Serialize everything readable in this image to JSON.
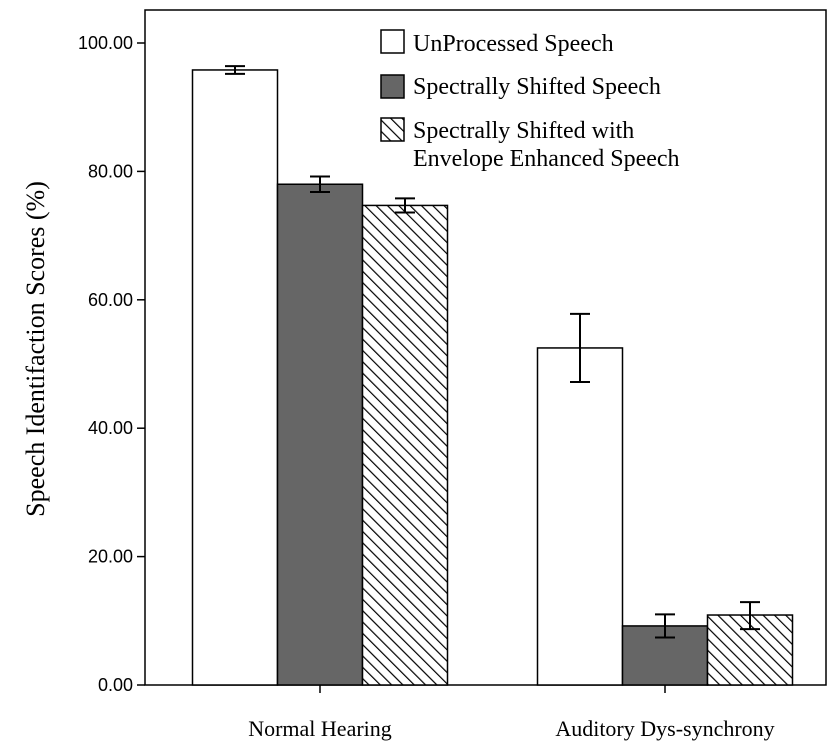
{
  "chart_data": {
    "type": "bar",
    "title": "",
    "xlabel": "",
    "ylabel": "Speech Identifaction Scores (%)",
    "ylim": [
      0,
      105
    ],
    "yticks": [
      "0.00",
      "20.00",
      "40.00",
      "60.00",
      "80.00",
      "100.00"
    ],
    "ytick_values": [
      0,
      20,
      40,
      60,
      80,
      100
    ],
    "grid": false,
    "legend_position": "top-right",
    "categories": [
      "Normal Hearing",
      "Auditory Dys-synchrony"
    ],
    "series": [
      {
        "name": "UnProcessed Speech",
        "legend_lines": [
          "UnProcessed Speech"
        ],
        "fill": "#ffffff",
        "pattern": "none",
        "values": [
          95.8,
          52.5
        ],
        "error_low": [
          95.2,
          47.2
        ],
        "error_high": [
          96.4,
          57.8
        ]
      },
      {
        "name": "Spectrally Shifted Speech",
        "legend_lines": [
          "Spectrally Shifted Speech"
        ],
        "fill": "#666666",
        "pattern": "none",
        "values": [
          78.0,
          9.2
        ],
        "error_low": [
          76.8,
          7.4
        ],
        "error_high": [
          79.2,
          11.0
        ]
      },
      {
        "name": "Spectrally Shifted with Envelope Enhanced Speech",
        "legend_lines": [
          "Spectrally Shifted with",
          "Envelope Enhanced Speech"
        ],
        "fill": "#ffffff",
        "pattern": "diagonal-hatch",
        "values": [
          74.7,
          10.9
        ],
        "error_low": [
          73.6,
          8.7
        ],
        "error_high": [
          75.8,
          12.9
        ]
      }
    ]
  }
}
